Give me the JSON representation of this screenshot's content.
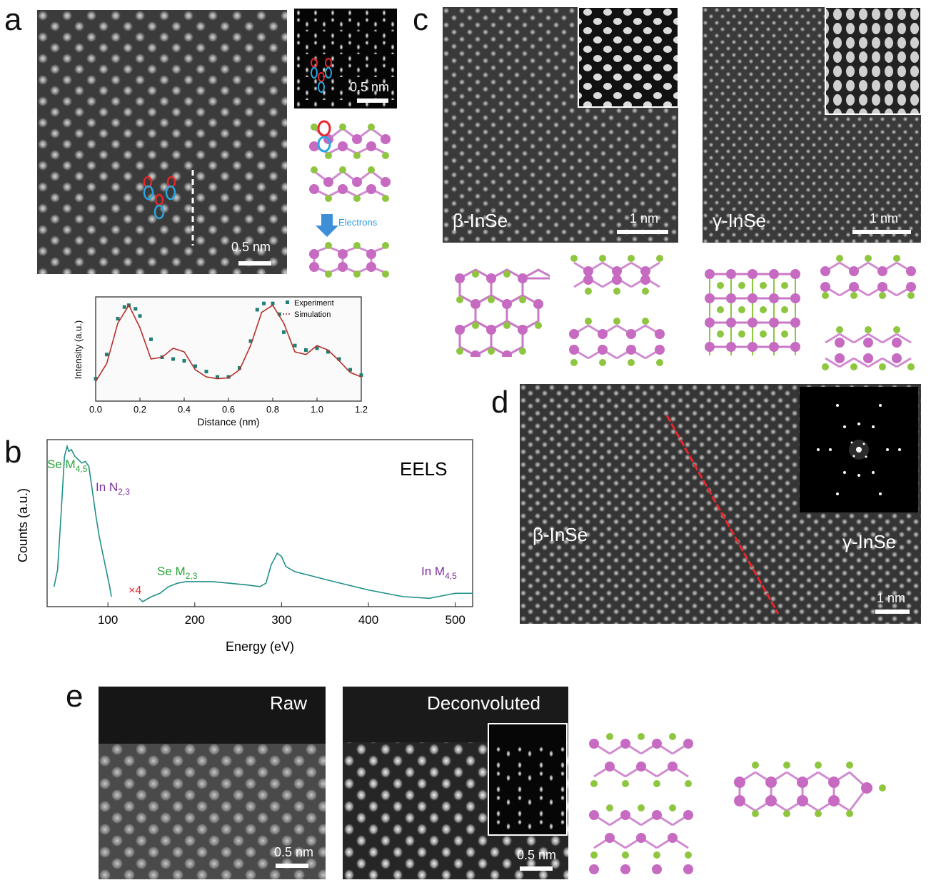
{
  "panels": {
    "a": {
      "letter": "a",
      "scale_main": "0.5 nm",
      "scale_inset": "0.5 nm",
      "electrons_label": "Electrons",
      "plot": {
        "xlabel": "Distance (nm)",
        "ylabel": "Intensity (a.u.)",
        "legend": [
          "Experiment",
          "Simulation"
        ],
        "xticks": [
          "0.0",
          "0.2",
          "0.4",
          "0.6",
          "0.8",
          "1.0",
          "1.2"
        ]
      }
    },
    "b": {
      "letter": "b",
      "title": "EELS",
      "xlabel": "Energy (eV)",
      "ylabel": "Counts (a.u.)",
      "xticks": [
        "100",
        "200",
        "300",
        "400",
        "500"
      ],
      "mult": "×4",
      "labels": {
        "se_m45": "Se M",
        "se_m45_sub": "4,5",
        "in_n23": "In N",
        "in_n23_sub": "2,3",
        "se_m23": "Se M",
        "se_m23_sub": "2,3",
        "in_m45": "In M",
        "in_m45_sub": "4,5"
      }
    },
    "c": {
      "letter": "c",
      "beta_label": "β-InSe",
      "gamma_label": "γ-InSe",
      "scale_beta": "1 nm",
      "scale_gamma": "1 nm"
    },
    "d": {
      "letter": "d",
      "beta_label": "β-InSe",
      "gamma_label": "γ-InSe",
      "scale": "1 nm"
    },
    "e": {
      "letter": "e",
      "raw_label": "Raw",
      "deconv_label": "Deconvoluted",
      "scale_raw": "0.5 nm",
      "scale_deconv": "0.5 nm"
    }
  },
  "chart_data": [
    {
      "type": "line",
      "panel": "a",
      "xlabel": "Distance (nm)",
      "ylabel": "Intensity (a.u.)",
      "xlim": [
        0.0,
        1.2
      ],
      "series": [
        {
          "name": "Experiment",
          "x": [
            0.0,
            0.05,
            0.1,
            0.13,
            0.15,
            0.18,
            0.2,
            0.25,
            0.3,
            0.35,
            0.4,
            0.45,
            0.5,
            0.55,
            0.6,
            0.65,
            0.7,
            0.73,
            0.76,
            0.8,
            0.83,
            0.85,
            0.9,
            0.95,
            1.0,
            1.05,
            1.1,
            1.15,
            1.2
          ],
          "y": [
            0.18,
            0.45,
            0.85,
            0.98,
            1.0,
            0.96,
            0.88,
            0.62,
            0.42,
            0.4,
            0.38,
            0.32,
            0.26,
            0.2,
            0.2,
            0.3,
            0.6,
            0.95,
            1.02,
            1.02,
            0.9,
            0.7,
            0.55,
            0.5,
            0.52,
            0.48,
            0.4,
            0.28,
            0.22
          ]
        },
        {
          "name": "Simulation",
          "x": [
            0.0,
            0.05,
            0.1,
            0.15,
            0.2,
            0.25,
            0.3,
            0.35,
            0.4,
            0.45,
            0.5,
            0.55,
            0.6,
            0.65,
            0.7,
            0.75,
            0.8,
            0.85,
            0.9,
            0.95,
            1.0,
            1.05,
            1.1,
            1.15,
            1.2
          ],
          "y": [
            0.15,
            0.35,
            0.8,
            1.0,
            0.75,
            0.4,
            0.42,
            0.52,
            0.48,
            0.28,
            0.2,
            0.18,
            0.19,
            0.28,
            0.55,
            0.92,
            1.0,
            0.8,
            0.48,
            0.45,
            0.55,
            0.5,
            0.38,
            0.25,
            0.2
          ]
        }
      ]
    },
    {
      "type": "line",
      "panel": "b",
      "title": "EELS",
      "xlabel": "Energy (eV)",
      "ylabel": "Counts (a.u.)",
      "xlim": [
        30,
        520
      ],
      "series": [
        {
          "name": "",
          "x": [
            38,
            42,
            46,
            50,
            53,
            55,
            58,
            62,
            66,
            70,
            74,
            78,
            82,
            86,
            90,
            94,
            98,
            102,
            104
          ],
          "y": [
            0.12,
            0.22,
            0.55,
            0.9,
            0.96,
            0.93,
            0.94,
            0.9,
            0.88,
            0.86,
            0.87,
            0.84,
            0.7,
            0.55,
            0.42,
            0.32,
            0.22,
            0.12,
            0.06
          ]
        },
        {
          "name": "",
          "x": [
            136,
            140,
            150,
            160,
            170,
            180,
            190,
            200,
            220,
            240,
            260,
            275,
            282,
            288,
            295,
            300,
            305,
            315,
            330,
            360,
            400,
            440,
            470,
            490,
            500,
            510,
            520
          ],
          "y": [
            0.05,
            0.03,
            0.06,
            0.08,
            0.12,
            0.14,
            0.15,
            0.15,
            0.15,
            0.14,
            0.13,
            0.12,
            0.14,
            0.25,
            0.32,
            0.3,
            0.24,
            0.21,
            0.19,
            0.15,
            0.1,
            0.06,
            0.05,
            0.07,
            0.08,
            0.08,
            0.08
          ]
        }
      ]
    }
  ]
}
